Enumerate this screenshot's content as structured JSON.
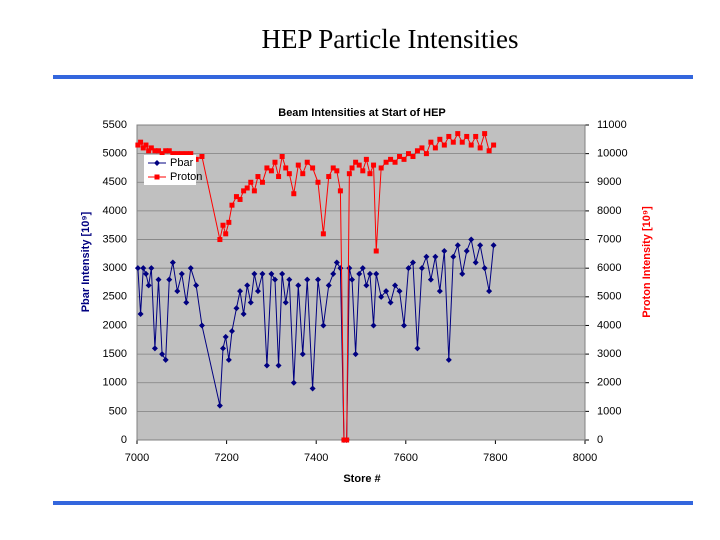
{
  "title": "HEP Particle Intensities",
  "chart_data": {
    "type": "line",
    "title": "Beam Intensities at Start of HEP",
    "x_label": "Store #",
    "y_label": "Pbar Intensity  [10⁹]",
    "y2_label": "Proton Intensity  [10⁹]",
    "xlim": [
      7000,
      8000
    ],
    "xticks": [
      7000,
      7200,
      7400,
      7600,
      7800,
      8000
    ],
    "ylim": [
      0,
      5500
    ],
    "yticks": [
      0,
      500,
      1000,
      1500,
      2000,
      2500,
      3000,
      3500,
      4000,
      4500,
      5000,
      5500
    ],
    "y2lim": [
      0,
      11000
    ],
    "y2ticks": [
      0,
      1000,
      2000,
      3000,
      4000,
      5000,
      6000,
      7000,
      8000,
      9000,
      10000,
      11000
    ],
    "grid": true,
    "legend": "upper left",
    "x": [
      7002,
      7008,
      7014,
      7020,
      7026,
      7032,
      7040,
      7048,
      7056,
      7064,
      7072,
      7080,
      7090,
      7100,
      7110,
      7120,
      7132,
      7145,
      7185,
      7192,
      7198,
      7205,
      7212,
      7222,
      7230,
      7238,
      7246,
      7254,
      7262,
      7270,
      7280,
      7290,
      7300,
      7308,
      7316,
      7324,
      7332,
      7340,
      7350,
      7360,
      7370,
      7380,
      7392,
      7404,
      7416,
      7428,
      7438,
      7446,
      7454,
      7462,
      7468,
      7474,
      7480,
      7488,
      7496,
      7504,
      7512,
      7520,
      7528,
      7534,
      7545,
      7556,
      7566,
      7576,
      7586,
      7596,
      7606,
      7616,
      7626,
      7636,
      7646,
      7656,
      7666,
      7676,
      7686,
      7696,
      7706,
      7716,
      7726,
      7736,
      7746,
      7756,
      7766,
      7776,
      7786,
      7796
    ],
    "series": [
      {
        "name": "Pbar",
        "color": "#000080",
        "marker": "diamond",
        "values": [
          3000,
          2200,
          3000,
          2900,
          2700,
          3000,
          1600,
          2800,
          1500,
          1400,
          2800,
          3100,
          2600,
          2900,
          2400,
          3000,
          2700,
          2000,
          600,
          1600,
          1800,
          1400,
          1900,
          2300,
          2600,
          2200,
          2700,
          2400,
          2900,
          2600,
          2900,
          1300,
          2900,
          2800,
          1300,
          2900,
          2400,
          2800,
          1000,
          2700,
          1500,
          2800,
          900,
          2800,
          2000,
          2700,
          2900,
          3100,
          3000,
          0,
          0,
          3000,
          2800,
          1500,
          2900,
          3000,
          2700,
          2900,
          2000,
          2900,
          2500,
          2600,
          2400,
          2700,
          2600,
          2000,
          3000,
          3100,
          1600,
          3000,
          3200,
          2800,
          3200,
          2600,
          3300,
          1400,
          3200,
          3400,
          2900,
          3300,
          3500,
          3100,
          3400,
          3000,
          2600,
          3400
        ]
      },
      {
        "name": "Proton",
        "color": "#ff0000",
        "marker": "square",
        "axis": "y2",
        "values": [
          10300,
          10400,
          10200,
          10300,
          10100,
          10200,
          10100,
          10100,
          10000,
          10100,
          10100,
          10000,
          10000,
          10000,
          10000,
          10000,
          9800,
          9900,
          7000,
          7500,
          7200,
          7600,
          8200,
          8500,
          8400,
          8700,
          8800,
          9000,
          8700,
          9200,
          9000,
          9500,
          9400,
          9700,
          9200,
          9900,
          9500,
          9300,
          8600,
          9600,
          9300,
          9700,
          9500,
          9000,
          7200,
          9200,
          9500,
          9400,
          8700,
          0,
          0,
          9300,
          9500,
          9700,
          9600,
          9400,
          9800,
          9300,
          9600,
          6600,
          9500,
          9700,
          9800,
          9700,
          9900,
          9800,
          10000,
          9900,
          10100,
          10200,
          10000,
          10400,
          10200,
          10500,
          10300,
          10600,
          10400,
          10700,
          10400,
          10600,
          10300,
          10600,
          10200,
          10700,
          10100,
          10300
        ]
      }
    ]
  }
}
